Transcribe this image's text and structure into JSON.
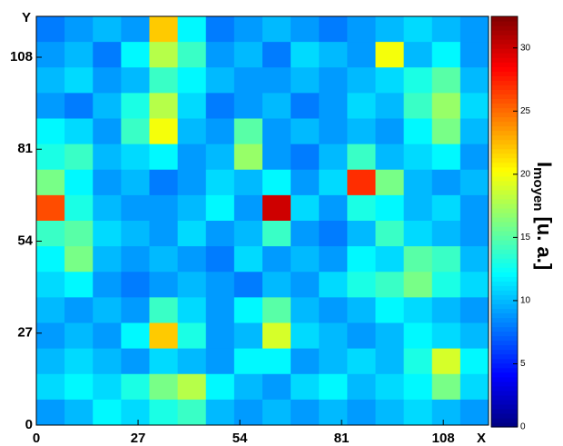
{
  "chart_data": {
    "type": "heatmap",
    "x_label": "X",
    "y_label": "Y",
    "colorbar_label": {
      "symbol": "I",
      "subscript": "moyen",
      "unit": "[u. a.]"
    },
    "colormap": "jet",
    "xlim": [
      0,
      120
    ],
    "ylim": [
      0,
      120
    ],
    "xticks": [
      0,
      27,
      54,
      81,
      108
    ],
    "yticks": [
      0,
      27,
      54,
      81,
      108
    ],
    "zlim": [
      0,
      32.5
    ],
    "zticks": [
      0,
      5,
      10,
      15,
      20,
      25,
      30
    ],
    "z": [
      [
        8,
        9,
        10,
        9,
        22,
        12,
        8,
        9,
        10,
        9,
        8,
        9,
        10,
        11,
        10,
        9
      ],
      [
        9,
        10,
        8,
        12,
        18,
        14,
        9,
        10,
        8,
        11,
        10,
        9,
        20,
        10,
        12,
        9
      ],
      [
        10,
        11,
        9,
        10,
        14,
        12,
        10,
        9,
        9,
        10,
        9,
        10,
        11,
        13,
        15,
        10
      ],
      [
        9,
        8,
        10,
        13,
        18,
        11,
        8,
        9,
        10,
        8,
        9,
        11,
        10,
        14,
        17,
        11
      ],
      [
        12,
        11,
        9,
        14,
        20,
        10,
        9,
        15,
        9,
        10,
        9,
        10,
        9,
        12,
        16,
        10
      ],
      [
        13,
        14,
        10,
        11,
        12,
        9,
        10,
        17,
        9,
        8,
        10,
        14,
        10,
        11,
        12,
        9
      ],
      [
        16,
        12,
        9,
        10,
        8,
        9,
        11,
        10,
        12,
        9,
        11,
        27,
        16,
        10,
        9,
        10
      ],
      [
        26,
        13,
        10,
        9,
        9,
        10,
        12,
        9,
        30,
        11,
        9,
        13,
        12,
        10,
        11,
        9
      ],
      [
        14,
        15,
        11,
        10,
        9,
        11,
        9,
        10,
        14,
        9,
        8,
        10,
        14,
        11,
        10,
        9
      ],
      [
        12,
        16,
        10,
        9,
        10,
        9,
        8,
        11,
        9,
        10,
        9,
        12,
        11,
        15,
        14,
        10
      ],
      [
        11,
        12,
        9,
        8,
        9,
        10,
        9,
        8,
        10,
        9,
        11,
        13,
        14,
        16,
        13,
        11
      ],
      [
        10,
        9,
        10,
        9,
        14,
        11,
        9,
        12,
        15,
        10,
        9,
        10,
        12,
        11,
        10,
        9
      ],
      [
        9,
        10,
        9,
        12,
        22,
        13,
        9,
        10,
        19,
        11,
        10,
        9,
        10,
        12,
        11,
        10
      ],
      [
        10,
        11,
        10,
        9,
        11,
        10,
        9,
        12,
        12,
        9,
        10,
        11,
        10,
        13,
        19,
        12
      ],
      [
        11,
        12,
        11,
        13,
        16,
        18,
        12,
        10,
        9,
        11,
        12,
        10,
        11,
        12,
        16,
        11
      ],
      [
        9,
        10,
        12,
        11,
        13,
        14,
        10,
        9,
        10,
        9,
        10,
        9,
        10,
        11,
        10,
        9
      ]
    ]
  }
}
